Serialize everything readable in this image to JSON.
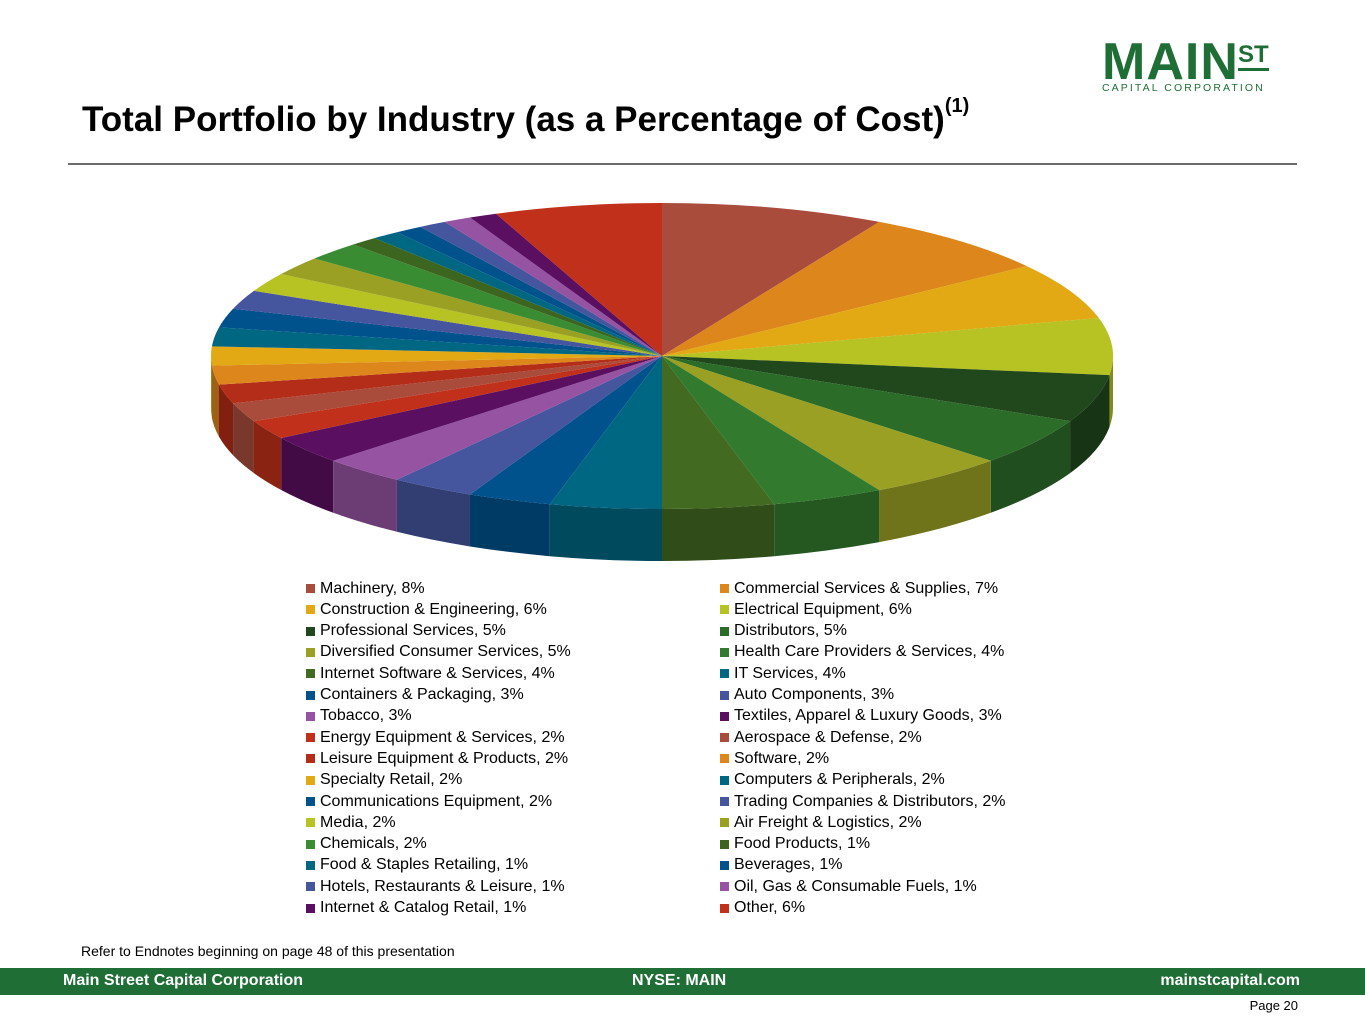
{
  "header": {
    "title": "Total Portfolio by Industry (as a Percentage of Cost)",
    "title_footnote": "(1)"
  },
  "logo": {
    "main": "MAIN",
    "superscript": "ST",
    "subtitle": "CAPITAL CORPORATION",
    "color": "#1e6e35"
  },
  "chart_data": {
    "type": "pie",
    "title": "Total Portfolio by Industry (as a Percentage of Cost)",
    "units": "percent",
    "legend_placement": "bottom",
    "legend_columns": 2,
    "slices": [
      {
        "label": "Machinery, 8%",
        "name": "Machinery",
        "value": 8,
        "color": "#a94c3c"
      },
      {
        "label": "Commercial Services & Supplies, 7%",
        "name": "Commercial Services & Supplies",
        "value": 7,
        "color": "#dc861c"
      },
      {
        "label": "Construction & Engineering, 6%",
        "name": "Construction & Engineering",
        "value": 6,
        "color": "#e3a915"
      },
      {
        "label": "Electrical Equipment, 6%",
        "name": "Electrical Equipment",
        "value": 6,
        "color": "#b7c223"
      },
      {
        "label": "Professional Services, 5%",
        "name": "Professional Services",
        "value": 5,
        "color": "#20481c"
      },
      {
        "label": "Distributors, 5%",
        "name": "Distributors",
        "value": 5,
        "color": "#2c6c29"
      },
      {
        "label": "Diversified Consumer Services, 5%",
        "name": "Diversified Consumer Services",
        "value": 5,
        "color": "#9aa023"
      },
      {
        "label": "Health Care Providers & Services, 4%",
        "name": "Health Care Providers & Services",
        "value": 4,
        "color": "#327a2d"
      },
      {
        "label": "Internet Software & Services, 4%",
        "name": "Internet Software & Services",
        "value": 4,
        "color": "#436a21"
      },
      {
        "label": "IT Services, 4%",
        "name": "IT Services",
        "value": 4,
        "color": "#006782"
      },
      {
        "label": "Containers & Packaging, 3%",
        "name": "Containers & Packaging",
        "value": 3,
        "color": "#00528c"
      },
      {
        "label": "Auto Components, 3%",
        "name": "Auto Components",
        "value": 3,
        "color": "#45559e"
      },
      {
        "label": "Tobacco, 3%",
        "name": "Tobacco",
        "value": 3,
        "color": "#9653a2"
      },
      {
        "label": "Textiles, Apparel & Luxury Goods, 3%",
        "name": "Textiles, Apparel & Luxury Goods",
        "value": 3,
        "color": "#5b0f60"
      },
      {
        "label": "Energy Equipment & Services, 2%",
        "name": "Energy Equipment & Services",
        "value": 2,
        "color": "#c1301a"
      },
      {
        "label": "Aerospace & Defense, 2%",
        "name": "Aerospace & Defense",
        "value": 2,
        "color": "#a94c3c"
      },
      {
        "label": "Leisure Equipment & Products, 2%",
        "name": "Leisure Equipment & Products",
        "value": 2,
        "color": "#b32d18"
      },
      {
        "label": "Software, 2%",
        "name": "Software",
        "value": 2,
        "color": "#dc861c"
      },
      {
        "label": "Specialty Retail, 2%",
        "name": "Specialty Retail",
        "value": 2,
        "color": "#e3a915"
      },
      {
        "label": "Computers & Peripherals, 2%",
        "name": "Computers & Peripherals",
        "value": 2,
        "color": "#006782"
      },
      {
        "label": "Communications Equipment, 2%",
        "name": "Communications Equipment",
        "value": 2,
        "color": "#00528c"
      },
      {
        "label": "Trading Companies & Distributors, 2%",
        "name": "Trading Companies & Distributors",
        "value": 2,
        "color": "#45559e"
      },
      {
        "label": "Media, 2%",
        "name": "Media",
        "value": 2,
        "color": "#b7c223"
      },
      {
        "label": "Air Freight & Logistics, 2%",
        "name": "Air Freight & Logistics",
        "value": 2,
        "color": "#9aa023"
      },
      {
        "label": "Chemicals, 2%",
        "name": "Chemicals",
        "value": 2,
        "color": "#3a8c33"
      },
      {
        "label": "Food Products, 1%",
        "name": "Food Products",
        "value": 1,
        "color": "#3c6520"
      },
      {
        "label": "Food & Staples Retailing, 1%",
        "name": "Food & Staples Retailing",
        "value": 1,
        "color": "#006782"
      },
      {
        "label": "Beverages, 1%",
        "name": "Beverages",
        "value": 1,
        "color": "#00528c"
      },
      {
        "label": "Hotels, Restaurants & Leisure, 1%",
        "name": "Hotels, Restaurants & Leisure",
        "value": 1,
        "color": "#45559e"
      },
      {
        "label": "Oil, Gas & Consumable Fuels, 1%",
        "name": "Oil, Gas & Consumable Fuels",
        "value": 1,
        "color": "#9653a2"
      },
      {
        "label": "Internet & Catalog Retail, 1%",
        "name": "Internet & Catalog Retail",
        "value": 1,
        "color": "#5b0f60"
      },
      {
        "label": "Other, 6%",
        "name": "Other",
        "value": 6,
        "color": "#c1301a"
      }
    ]
  },
  "endnote": "Refer to Endnotes beginning on page 48 of this presentation",
  "footer": {
    "company": "Main Street Capital Corporation",
    "ticker": "NYSE: MAIN",
    "website": "mainstcapital.com",
    "color": "#1e6e35"
  },
  "page": {
    "label": "Page  20"
  }
}
